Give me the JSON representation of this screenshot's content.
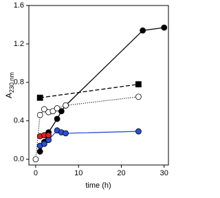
{
  "chart_data": {
    "type": "line",
    "x_label": "time (h)",
    "y_label": "A",
    "y_label_sub": "230 nm",
    "xlim": [
      -1.6,
      31
    ],
    "ylim": [
      -0.06,
      1.6
    ],
    "xticks": [
      0,
      10,
      20,
      30
    ],
    "yticks": [
      {
        "value": 0,
        "label": "0.0"
      },
      0.4,
      0.8,
      1.2,
      1.6
    ],
    "series": [
      {
        "color": "#000000",
        "marker": "circle",
        "fill": "#000000",
        "dash": "none",
        "x": [
          1,
          2,
          3,
          5,
          6,
          7,
          25,
          30
        ],
        "values": [
          0.08,
          0.18,
          0.28,
          0.42,
          0.5,
          0.56,
          1.34,
          1.37
        ]
      },
      {
        "color": "#000000",
        "marker": "square",
        "fill": "#000000",
        "dash": "6,3",
        "x": [
          1,
          24
        ],
        "values": [
          0.64,
          0.78
        ]
      },
      {
        "color": "#000000",
        "marker": "circle",
        "fill": "#ffffff",
        "dash": "1,2",
        "x": [
          0,
          1,
          2,
          3,
          4,
          5,
          7,
          24
        ],
        "values": [
          0.0,
          0.46,
          0.52,
          0.49,
          0.5,
          0.53,
          0.56,
          0.65
        ]
      },
      {
        "color": "#2b4fd6",
        "marker": "circle",
        "fill": "#2b4fd6",
        "dash": "none",
        "x": [
          1,
          2,
          3,
          5,
          6,
          7,
          24
        ],
        "values": [
          0.14,
          0.16,
          0.2,
          0.3,
          0.28,
          0.27,
          0.29
        ]
      },
      {
        "color": "#e02020",
        "marker": "circle",
        "fill": "#e02020",
        "dash": "none",
        "x": [
          1,
          2,
          3
        ],
        "values": [
          0.24,
          0.25,
          0.25
        ]
      }
    ]
  }
}
